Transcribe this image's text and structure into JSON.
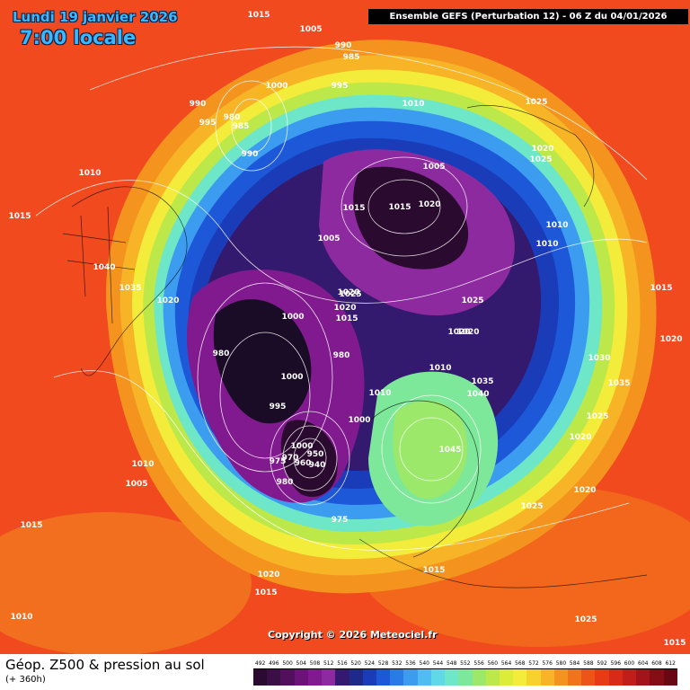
{
  "header": {
    "date": "Lundi 19 janvier 2026",
    "time": "7:00 locale",
    "model": "Ensemble GEFS  (Perturbation 12)  -  06 Z du 04/01/2026"
  },
  "footer": {
    "product": "Géop. Z500 & pression au sol",
    "lead": "(+ 360h)",
    "copyright": "Copyright © 2026 Meteociel.fr"
  },
  "scale": {
    "values": [
      "492",
      "496",
      "500",
      "504",
      "508",
      "512",
      "516",
      "520",
      "524",
      "528",
      "532",
      "536",
      "540",
      "544",
      "548",
      "552",
      "556",
      "560",
      "564",
      "568",
      "572",
      "576",
      "580",
      "584",
      "588",
      "592",
      "596",
      "600",
      "604",
      "608",
      "612"
    ],
    "colors": [
      "#2a0a2e",
      "#3b0e45",
      "#520f5c",
      "#6b1377",
      "#821a8f",
      "#8e2aa0",
      "#331a6e",
      "#1e2a8a",
      "#1a3cb8",
      "#1d58d8",
      "#2a7ae8",
      "#3c9cf0",
      "#4fbdf0",
      "#5fd8e8",
      "#6ee6c8",
      "#7ee89a",
      "#9be86a",
      "#bce84a",
      "#dcec3a",
      "#f3ec3a",
      "#f7d22e",
      "#f6b426",
      "#f4941f",
      "#f2741a",
      "#ee5418",
      "#e83a17",
      "#d82a18",
      "#c01e1a",
      "#a2141a",
      "#860c16",
      "#680812"
    ]
  },
  "pressure_labels": [
    "1015",
    "1005",
    "990",
    "985",
    "995",
    "1000",
    "990",
    "995",
    "985",
    "980",
    "990",
    "1010",
    "1015",
    "1040",
    "1035",
    "1020",
    "1010",
    "1005",
    "1015",
    "1005",
    "1015",
    "1020",
    "1020",
    "1000",
    "1025",
    "1020",
    "1015",
    "1000",
    "980",
    "980",
    "1000",
    "995",
    "975",
    "970",
    "960",
    "950",
    "940",
    "980",
    "975",
    "1000",
    "1010",
    "1010",
    "1045",
    "1015",
    "1020",
    "1015",
    "1010",
    "1025",
    "1020",
    "1025",
    "1025",
    "1020",
    "1010",
    "1010",
    "1015",
    "1020",
    "1030",
    "1035",
    "1025",
    "1020",
    "1020",
    "1025",
    "1020",
    "1035",
    "1040",
    "1005",
    "1010",
    "1025",
    "1015",
    "1015"
  ]
}
